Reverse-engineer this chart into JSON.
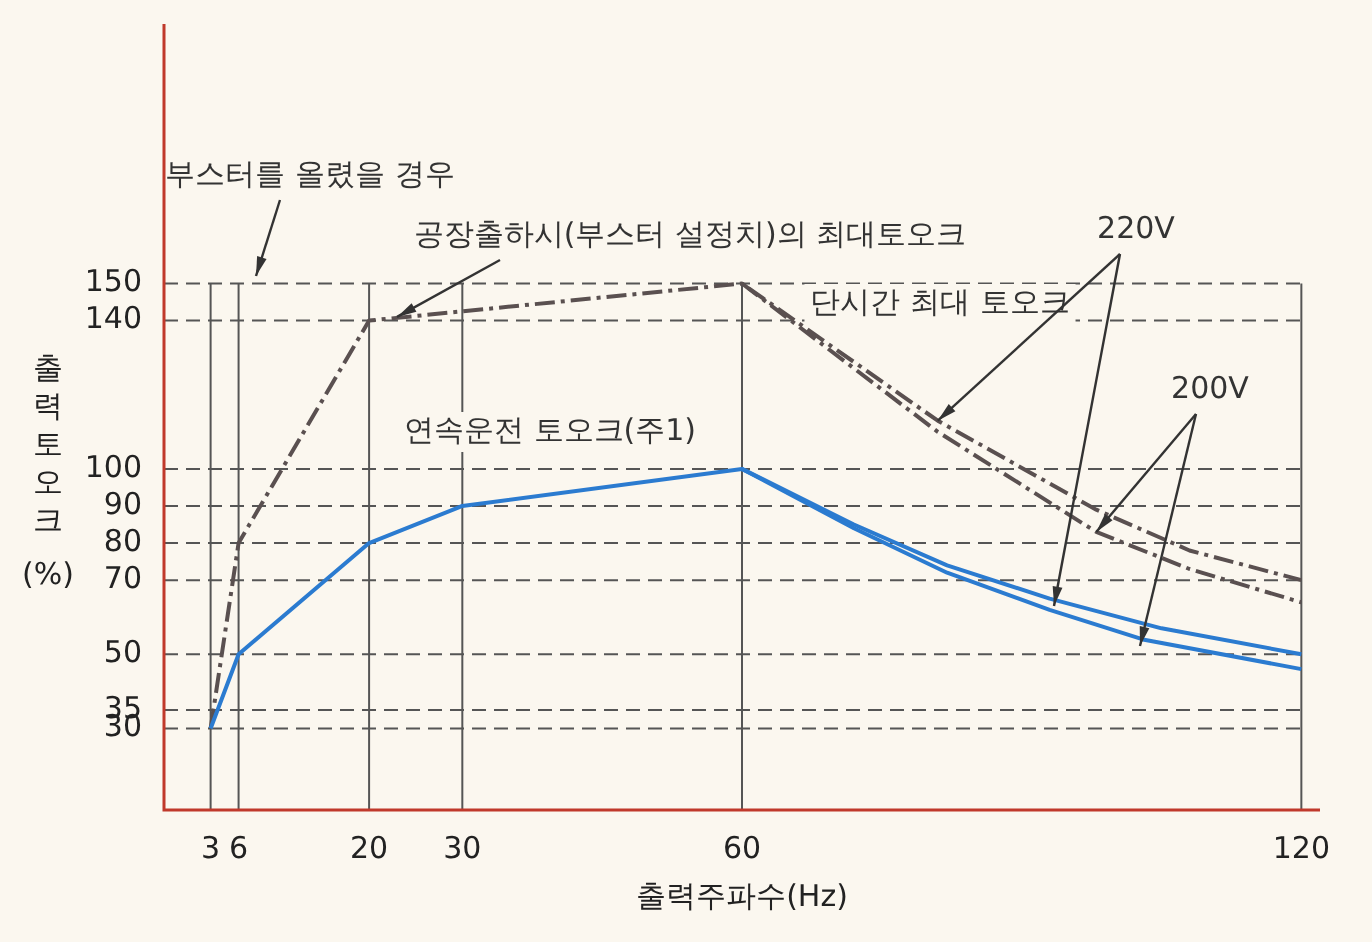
{
  "chart_data": {
    "type": "line",
    "xlabel": "출력주파수(Hz)",
    "ylabel": "출력토오크 (%)",
    "xlim": [
      -2,
      122
    ],
    "xticks": [
      3,
      6,
      20,
      30,
      60,
      120
    ],
    "ylim": [
      8,
      220
    ],
    "yticks": [
      30,
      35,
      50,
      70,
      80,
      90,
      100,
      140,
      150
    ],
    "grid": "y",
    "ref_lines": [
      {
        "axis": "x",
        "value": 3,
        "color": "#555555",
        "line_style": "solid"
      },
      {
        "axis": "x",
        "value": 6,
        "color": "#555555",
        "line_style": "solid"
      },
      {
        "axis": "x",
        "value": 20,
        "color": "#555555",
        "line_style": "solid"
      },
      {
        "axis": "x",
        "value": 30,
        "color": "#555555",
        "line_style": "solid"
      },
      {
        "axis": "x",
        "value": 60,
        "color": "#555555",
        "line_style": "solid"
      },
      {
        "axis": "x",
        "value": 120,
        "color": "#555555",
        "line_style": "solid"
      }
    ],
    "series": [
      {
        "color": "#2b7bd0",
        "line_style": "solid",
        "x": [
          3,
          6,
          20,
          30,
          60,
          72,
          82,
          93,
          105,
          120
        ],
        "values": [
          30,
          50,
          80,
          90,
          100,
          85,
          74,
          65,
          57,
          50
        ]
      },
      {
        "color": "#2b7bd0",
        "line_style": "solid",
        "x": [
          60,
          72,
          82,
          93,
          103,
          120
        ],
        "values": [
          100,
          84,
          72,
          62,
          54,
          46
        ]
      },
      {
        "color": "#5a5050",
        "line_style": "dashed",
        "x": [
          3,
          6,
          20,
          60,
          81,
          98,
          108,
          120
        ],
        "values": [
          30,
          80,
          140,
          150,
          113,
          89,
          78,
          70
        ]
      },
      {
        "color": "#5a5050",
        "line_style": "dashed",
        "x": [
          60,
          81,
          98,
          108,
          120
        ],
        "values": [
          150,
          110,
          83,
          73,
          64
        ]
      }
    ],
    "annotations": [
      "부스터를 올렸을 경우",
      {
        "text": "공장출하시(부스터 설정치)의 최대토오크",
        "x": 23,
        "y": 141
      },
      "단시간 최대 토오크",
      "연속운전 토오크(주1)",
      {
        "text": "220V",
        "x": 81,
        "y": 113
      },
      {
        "text": "200V",
        "x": 98,
        "y": 83
      }
    ]
  }
}
